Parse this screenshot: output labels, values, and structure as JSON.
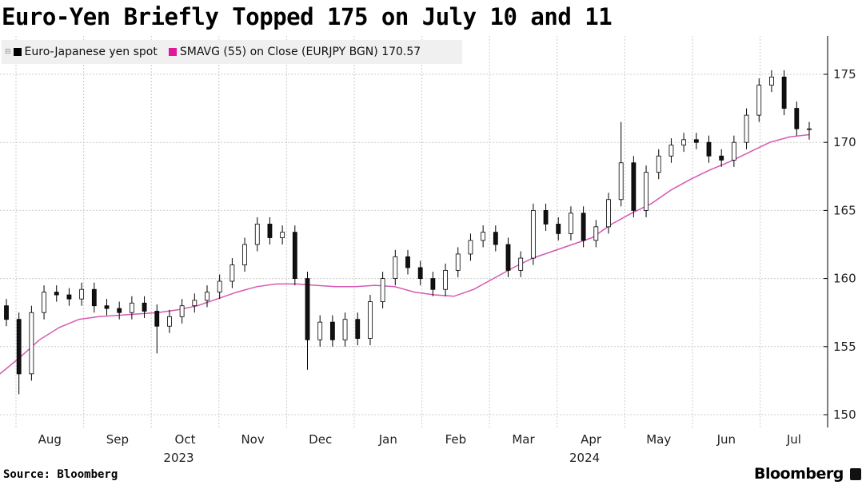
{
  "title": "Euro-Yen Briefly Topped 175 on July 10 and 11",
  "legend": [
    {
      "label": "Euro-Japanese yen spot",
      "color": "#000000"
    },
    {
      "label": "SMAVG (55)  on Close (EURJPY BGN) 170.57",
      "color": "#e0199a"
    }
  ],
  "source": "Source: Bloomberg",
  "brand": "Bloomberg",
  "chart_data": {
    "type": "candlestick",
    "title": "Euro-Yen Briefly Topped 175 on July 10 and 11",
    "ylim": [
      149,
      177.5
    ],
    "yticks": [
      150,
      155,
      160,
      165,
      170,
      175
    ],
    "grid": true,
    "x_months": [
      "Aug",
      "Sep",
      "Oct",
      "Nov",
      "Dec",
      "Jan",
      "Feb",
      "Mar",
      "Apr",
      "May",
      "Jun",
      "Jul"
    ],
    "x_years": [
      {
        "label": "2023",
        "under": "Oct"
      },
      {
        "label": "2024",
        "under": "Apr"
      }
    ],
    "first_open": 158,
    "closes": [
      157,
      153,
      157.5,
      159,
      158.8,
      158.5,
      159.2,
      158,
      157.8,
      157.5,
      158.2,
      157.6,
      156.5,
      157.2,
      158,
      158.4,
      159,
      159.8,
      161,
      162.5,
      164,
      163,
      163.4,
      160,
      155.5,
      156.8,
      155.5,
      157,
      155.6,
      158.3,
      160,
      161.6,
      160.8,
      160,
      159.2,
      160.6,
      161.8,
      162.8,
      163.4,
      162.5,
      160.6,
      161.5,
      165,
      164,
      163.3,
      164.8,
      162.8,
      163.8,
      165.8,
      168.5,
      165,
      167.8,
      169,
      169.8,
      170.2,
      170,
      169,
      168.7,
      170,
      172,
      174.2,
      174.8,
      172.5,
      171,
      171
    ],
    "wick_overrides": {
      "1": {
        "low": 151.5
      },
      "12": {
        "low": 154.5
      },
      "24": {
        "low": 153.3
      },
      "49": {
        "high": 171.5
      },
      "62": {
        "high": 175.3
      },
      "64": {
        "low": 170.2
      }
    },
    "sma55": [
      153,
      154.2,
      155.5,
      156.4,
      157,
      157.2,
      157.3,
      157.4,
      157.5,
      157.7,
      158,
      158.5,
      159,
      159.4,
      159.6,
      159.6,
      159.5,
      159.4,
      159.4,
      159.5,
      159.4,
      159,
      158.8,
      158.7,
      159.2,
      160,
      160.8,
      161.5,
      162,
      162.5,
      163,
      164,
      164.8,
      165.5,
      166.5,
      167.3,
      168,
      168.6,
      169.3,
      170,
      170.4,
      170.57
    ],
    "series": [
      {
        "name": "Euro-Japanese yen spot"
      },
      {
        "name": "SMAVG (55) on Close (EURJPY BGN)",
        "last": 170.57
      }
    ]
  }
}
